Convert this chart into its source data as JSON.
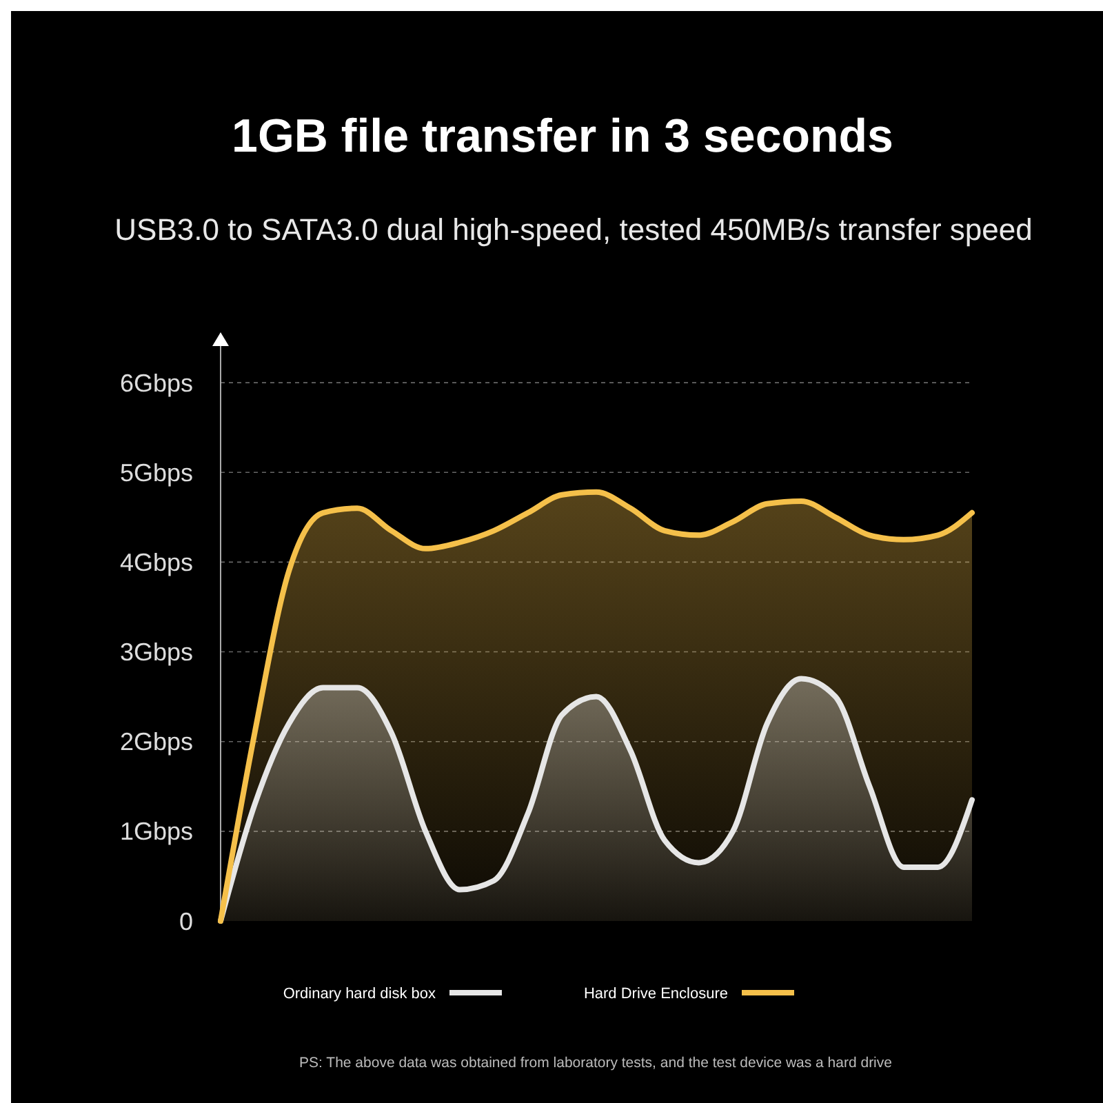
{
  "chart_data": {
    "type": "area",
    "title": "1GB file transfer in 3 seconds",
    "subtitle": "USB3.0 to SATA3.0 dual high-speed, tested 450MB/s transfer speed",
    "categories": [
      null,
      null,
      null,
      null,
      null,
      null,
      null,
      null,
      null,
      null,
      null,
      null,
      null,
      null,
      null,
      null,
      null,
      null,
      null,
      null,
      null,
      null,
      null
    ],
    "series": [
      {
        "name": "Ordinary hard disk box",
        "color": "#e6e6e6",
        "values": [
          0,
          1.3,
          2.2,
          2.6,
          2.6,
          2.1,
          1.0,
          0.35,
          0.45,
          1.2,
          2.3,
          2.5,
          1.9,
          0.9,
          0.65,
          1.0,
          2.2,
          2.7,
          2.5,
          1.5,
          0.6,
          0.6,
          1.35
        ]
      },
      {
        "name": "Hard Drive Enclosure",
        "color": "#f5c04a",
        "values": [
          0,
          2.1,
          3.9,
          4.55,
          4.6,
          4.35,
          4.15,
          4.22,
          4.35,
          4.55,
          4.75,
          4.78,
          4.6,
          4.35,
          4.3,
          4.45,
          4.65,
          4.68,
          4.5,
          4.3,
          4.25,
          4.3,
          4.55
        ]
      }
    ],
    "ylim": [
      0,
      6.5
    ],
    "yticks": [
      0,
      {
        "value": 1,
        "label": "1Gbps"
      },
      {
        "value": 2,
        "label": "2Gbps"
      },
      {
        "value": 3,
        "label": "3Gbps"
      },
      {
        "value": 4,
        "label": "4Gbps"
      },
      {
        "value": 5,
        "label": "5Gbps"
      },
      {
        "value": 6,
        "label": "6Gbps"
      }
    ],
    "grid": "y",
    "legend": "bottom",
    "line_style": "solid",
    "annotations": [
      "PS: The above data was obtained from laboratory tests, and the test device was a hard drive"
    ]
  }
}
